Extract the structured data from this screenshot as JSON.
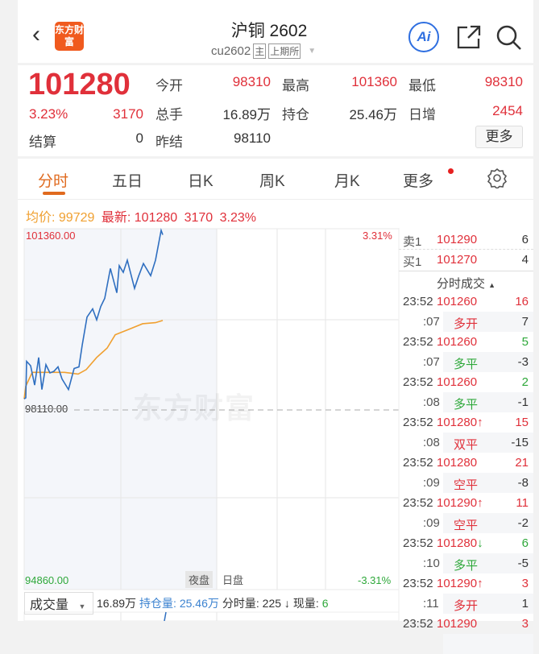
{
  "header": {
    "title": "沪铜 2602",
    "code": "cu2602",
    "tag_main": "主",
    "tag_exchange": "上期所",
    "logo_text": "东方财富",
    "ai_label": "Ai",
    "icons": [
      "back-icon",
      "share-icon",
      "search-icon",
      "dropdown-icon"
    ]
  },
  "quote": {
    "price": "101280",
    "change_pct": "3.23%",
    "change": "3170",
    "fields": [
      {
        "label": "今开",
        "value": "98310"
      },
      {
        "label": "最高",
        "value": "101360"
      },
      {
        "label": "最低",
        "value": "98310"
      },
      {
        "label": "总手",
        "value": "16.89万"
      },
      {
        "label": "持仓",
        "value": "25.46万"
      },
      {
        "label": "日增",
        "value": "2454"
      },
      {
        "label": "结算",
        "value": "0"
      },
      {
        "label": "昨结",
        "value": "98110"
      }
    ],
    "more_button": "更多"
  },
  "tabs": [
    "分时",
    "五日",
    "日K",
    "周K",
    "月K",
    "更多"
  ],
  "active_tab": "分时",
  "info_line": {
    "avg_label": "均价:",
    "avg": "99729",
    "latest_label": "最新:",
    "latest": "101280",
    "change": "3170",
    "pct": "3.23%"
  },
  "chart_data": {
    "type": "line",
    "y_max": "101360.00",
    "y_mid": "98110.00",
    "y_min": "94860.00",
    "pct_max": "3.31%",
    "pct_min": "-3.31%",
    "ylim": [
      94860,
      101360
    ],
    "prev_settle": 98110,
    "sessions": [
      "夜盘",
      "日盘"
    ],
    "watermark": "东方财富",
    "price_color": "#2f6fc0",
    "avg_color": "#f0a030",
    "price": [
      [
        "21:00",
        98310
      ],
      [
        "21:02",
        98330
      ],
      [
        "21:03",
        98990
      ],
      [
        "21:08",
        98910
      ],
      [
        "21:13",
        98560
      ],
      [
        "21:18",
        99060
      ],
      [
        "21:22",
        98480
      ],
      [
        "21:27",
        98930
      ],
      [
        "21:32",
        98780
      ],
      [
        "21:37",
        98810
      ],
      [
        "21:42",
        98890
      ],
      [
        "21:47",
        98670
      ],
      [
        "21:55",
        98480
      ],
      [
        "22:02",
        98860
      ],
      [
        "22:08",
        98890
      ],
      [
        "22:12",
        99280
      ],
      [
        "22:18",
        99790
      ],
      [
        "22:25",
        99940
      ],
      [
        "22:30",
        99740
      ],
      [
        "22:35",
        99980
      ],
      [
        "22:40",
        100130
      ],
      [
        "22:47",
        100670
      ],
      [
        "22:55",
        100230
      ],
      [
        "22:58",
        100720
      ],
      [
        "23:03",
        100600
      ],
      [
        "23:08",
        100820
      ],
      [
        "23:17",
        100310
      ],
      [
        "23:22",
        100530
      ],
      [
        "23:28",
        100760
      ],
      [
        "23:37",
        100540
      ],
      [
        "23:43",
        100820
      ],
      [
        "23:50",
        101360
      ],
      [
        "23:52",
        101280
      ]
    ],
    "avg": [
      [
        "21:00",
        98310
      ],
      [
        "21:02",
        98540
      ],
      [
        "21:10",
        98790
      ],
      [
        "21:30",
        98790
      ],
      [
        "21:50",
        98790
      ],
      [
        "22:07",
        98760
      ],
      [
        "22:17",
        98840
      ],
      [
        "22:30",
        99060
      ],
      [
        "22:43",
        99230
      ],
      [
        "22:53",
        99470
      ],
      [
        "23:10",
        99570
      ],
      [
        "23:27",
        99670
      ],
      [
        "23:43",
        99690
      ],
      [
        "23:52",
        99729
      ]
    ]
  },
  "orderbook": [
    {
      "label": "卖1",
      "price": "101290",
      "qty": "6"
    },
    {
      "label": "买1",
      "price": "101270",
      "qty": "4"
    }
  ],
  "ticks_title": "分时成交",
  "ticks": [
    {
      "time": "23:52",
      "price": "101260",
      "arrow": "",
      "vol": "16",
      "vol_color": "red",
      "sec": ":07",
      "type": "多开",
      "type_color": "red",
      "oi": "7"
    },
    {
      "time": "23:52",
      "price": "101260",
      "arrow": "",
      "vol": "5",
      "vol_color": "green",
      "sec": ":07",
      "type": "多平",
      "type_color": "green",
      "oi": "-3"
    },
    {
      "time": "23:52",
      "price": "101260",
      "arrow": "",
      "vol": "2",
      "vol_color": "green",
      "sec": ":08",
      "type": "多平",
      "type_color": "green",
      "oi": "-1"
    },
    {
      "time": "23:52",
      "price": "101280",
      "arrow": "↑",
      "vol": "15",
      "vol_color": "red",
      "sec": ":08",
      "type": "双平",
      "type_color": "red",
      "oi": "-15"
    },
    {
      "time": "23:52",
      "price": "101280",
      "arrow": "",
      "vol": "21",
      "vol_color": "red",
      "sec": ":09",
      "type": "空平",
      "type_color": "red",
      "oi": "-8"
    },
    {
      "time": "23:52",
      "price": "101290",
      "arrow": "↑",
      "vol": "11",
      "vol_color": "red",
      "sec": ":09",
      "type": "空平",
      "type_color": "red",
      "oi": "-2"
    },
    {
      "time": "23:52",
      "price": "101280",
      "arrow": "↓",
      "vol": "6",
      "vol_color": "green",
      "sec": ":10",
      "type": "多平",
      "type_color": "green",
      "oi": "-5"
    },
    {
      "time": "23:52",
      "price": "101290",
      "arrow": "↑",
      "vol": "3",
      "vol_color": "red",
      "sec": ":11",
      "type": "多开",
      "type_color": "red",
      "oi": "1"
    },
    {
      "time": "23:52",
      "price": "101290",
      "arrow": "",
      "vol": "3",
      "vol_color": "red",
      "sec": "",
      "type": "",
      "type_color": "red",
      "oi": ""
    }
  ],
  "volume_bar": {
    "selector": "成交量",
    "volume": "16.89万",
    "oi_label": "持仓量: 25.46万",
    "period_label": "分时量: 225 ↓",
    "now_label": "现量:",
    "now": "6"
  }
}
